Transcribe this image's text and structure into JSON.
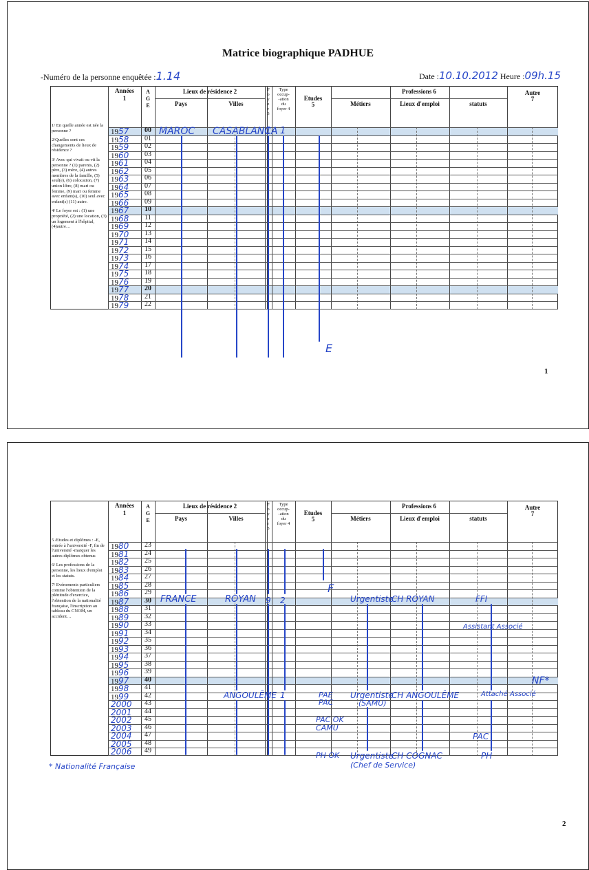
{
  "page1": {
    "title": "Matrice biographique PADHUE",
    "person_label": "-Numéro de la personne enquêtée :",
    "person_value": "1.14",
    "date_label": "Date :",
    "date_value": "10.10.2012",
    "heure_label": "Heure :",
    "heure_value": "09h.15",
    "page_number": "1"
  },
  "page2": {
    "page_number": "2"
  },
  "headers": {
    "annees": "Années",
    "annees_n": "1",
    "age": "A\nG\nE",
    "lieux": "Lieux de résidence 2",
    "pays": "Pays",
    "villes": "Villes",
    "foyer": "F\no\ny\ne\nr\n3",
    "type": "Type\noccup-\n-ation\ndu\nfoyer 4",
    "etudes": "Etudes\n5",
    "professions": "Professions 6",
    "metiers": "Métiers",
    "lieux_emploi": "Lieux d'emploi",
    "statuts": "statuts",
    "autre": "Autre\n7"
  },
  "side1": [
    "1/ En quelle année est née la personne ?",
    "2/Quelles sont ces changements de lieux de résidence ?",
    "3/ Avec qui vivait ou vit la personne ? (1) parents, (2) père, (3) mère, (4) autres membres de la famille, (5) seul(e), (6) colocation, (7) union libre, (8) mari ou femme, (9) mari ou femme avec enfant(s), (10) seul avec enfant(s) (11) autre.",
    "4/ Le foyer est : (1) une propriété, (2) une location, (3) un logement à l'hôpital, (4)autre…"
  ],
  "side2": [
    "5 /Etudes et diplômes : -E, entrée à l'université -F, fin de l'université -marquer les autres diplômes obtenus",
    "6/ Les professions de la personne, les lieux d'emploi et les statuts.",
    "7/ Evénements particuliers comme l'obtention de la plénitude d'exercice, l'obtention de la nationalité française, l'inscription au tableau du CNOM, un accident…"
  ],
  "rows1": [
    {
      "printed": "19",
      "hw": "57",
      "age": "00",
      "hl": true
    },
    {
      "printed": "19",
      "hw": "58",
      "age": "01"
    },
    {
      "printed": "19",
      "hw": "59",
      "age": "02"
    },
    {
      "printed": "19",
      "hw": "60",
      "age": "03"
    },
    {
      "printed": "19",
      "hw": "61",
      "age": "04"
    },
    {
      "printed": "19",
      "hw": "62",
      "age": "05"
    },
    {
      "printed": "19",
      "hw": "63",
      "age": "06"
    },
    {
      "printed": "19",
      "hw": "64",
      "age": "07"
    },
    {
      "printed": "19",
      "hw": "65",
      "age": "08"
    },
    {
      "printed": "19",
      "hw": "66",
      "age": "09"
    },
    {
      "printed": "19",
      "hw": "67",
      "age": "10",
      "hl": true
    },
    {
      "printed": "19",
      "hw": "68",
      "age": "11"
    },
    {
      "printed": "19",
      "hw": "69",
      "age": "12"
    },
    {
      "printed": "19",
      "hw": "70",
      "age": "13"
    },
    {
      "printed": "19",
      "hw": "71",
      "age": "14"
    },
    {
      "printed": "19",
      "hw": "72",
      "age": "15"
    },
    {
      "printed": "19",
      "hw": "73",
      "age": "16"
    },
    {
      "printed": "19",
      "hw": "74",
      "age": "17"
    },
    {
      "printed": "19",
      "hw": "75",
      "age": "18"
    },
    {
      "printed": "19",
      "hw": "76",
      "age": "19"
    },
    {
      "printed": "19",
      "hw": "77",
      "age": "20",
      "hl": true
    },
    {
      "printed": "19",
      "hw": "78",
      "age": "21"
    },
    {
      "printed": "19",
      "hw": "79",
      "age": "22"
    }
  ],
  "rows2": [
    {
      "printed": "19",
      "hw": "80",
      "age": "23"
    },
    {
      "printed": "19",
      "hw": "81",
      "age": "24"
    },
    {
      "printed": "19",
      "hw": "82",
      "age": "25"
    },
    {
      "printed": "19",
      "hw": "83",
      "age": "26"
    },
    {
      "printed": "19",
      "hw": "84",
      "age": "27"
    },
    {
      "printed": "19",
      "hw": "85",
      "age": "28"
    },
    {
      "printed": "19",
      "hw": "86",
      "age": "29"
    },
    {
      "printed": "19",
      "hw": "87",
      "age": "30",
      "hl": true
    },
    {
      "printed": "19",
      "hw": "88",
      "age": "31"
    },
    {
      "printed": "19",
      "hw": "89",
      "age": "32"
    },
    {
      "printed": "19",
      "hw": "90",
      "age": "33"
    },
    {
      "printed": "19",
      "hw": "91",
      "age": "34"
    },
    {
      "printed": "19",
      "hw": "92",
      "age": "35"
    },
    {
      "printed": "19",
      "hw": "93",
      "age": "36"
    },
    {
      "printed": "19",
      "hw": "94",
      "age": "37"
    },
    {
      "printed": "19",
      "hw": "95",
      "age": "38"
    },
    {
      "printed": "19",
      "hw": "96",
      "age": "39"
    },
    {
      "printed": "19",
      "hw": "97",
      "age": "40",
      "hl": true
    },
    {
      "printed": "19",
      "hw": "98",
      "age": "41"
    },
    {
      "printed": "19",
      "hw": "99",
      "age": "42"
    },
    {
      "printed": "",
      "hw": "2000",
      "age": "43"
    },
    {
      "printed": "",
      "hw": "2001",
      "age": "44"
    },
    {
      "printed": "",
      "hw": "2002",
      "age": "45"
    },
    {
      "printed": "",
      "hw": "2003",
      "age": "46"
    },
    {
      "printed": "",
      "hw": "2004",
      "age": "47"
    },
    {
      "printed": "",
      "hw": "2005",
      "age": "48"
    },
    {
      "printed": "",
      "hw": "2006",
      "age": "49"
    }
  ],
  "entries1": {
    "pays": "MAROC",
    "ville": "CASABLANCA",
    "foyer": "1",
    "type": "1",
    "etudes": "E"
  },
  "entries2": {
    "pays_1990": "FRANCE",
    "ville_1990": "ROYAN",
    "foyer_1990": "9",
    "type_1990": "2",
    "etudes_1989": "F",
    "metier_1990": "Urgentiste",
    "lieu_1990": "CH ROYAN",
    "statut_1990": "FFI",
    "statut_1993": "Assistant Associé",
    "ville_1998": "ANGOULÊME",
    "type_1998": "1",
    "etudes_1998a": "PAE",
    "etudes_1998b": "PAC",
    "metier_1998": "Urgentiste",
    "metier_1998b": "(SAMU)",
    "lieu_1998": "CH ANGOULÊME",
    "statut_1998": "Attaché Associé",
    "autre_1997": "NF*",
    "etudes_2002": "PAC OK",
    "etudes_2003": "CAMU",
    "statut_2003": "PAC",
    "etudes_2006": "PH OK",
    "metier_2006": "Urgentiste",
    "metier_2006b": "(Chef de Service)",
    "lieu_2006": "CH COGNAC",
    "statut_2006": "PH",
    "footnote": "* Nationalité Française"
  }
}
